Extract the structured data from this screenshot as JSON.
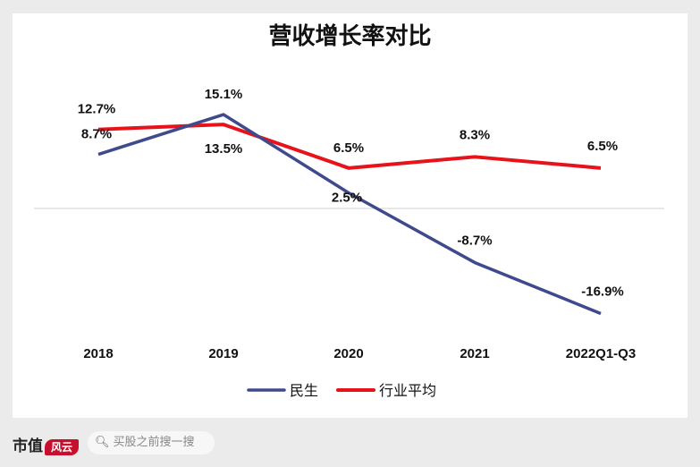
{
  "chart_data": {
    "type": "line",
    "title": "营收增长率对比",
    "categories": [
      "2018",
      "2019",
      "2020",
      "2021",
      "2022Q1-Q3"
    ],
    "series": [
      {
        "name": "民生",
        "color": "#3f4a8c",
        "values": [
          8.7,
          15.1,
          2.5,
          -8.7,
          -16.9
        ],
        "labels": [
          "8.7%",
          "15.1%",
          "2.5%",
          "-8.7%",
          "-16.9%"
        ]
      },
      {
        "name": "行业平均",
        "color": "#e8121a",
        "values": [
          12.7,
          13.5,
          6.5,
          8.3,
          6.5
        ],
        "labels": [
          "12.7%",
          "13.5%",
          "6.5%",
          "8.3%",
          "6.5%"
        ]
      }
    ],
    "ylim": [
      -20,
      20
    ],
    "legend_position": "bottom-center",
    "grid": false
  },
  "footer": {
    "brand_text": "市值",
    "brand_logo": "风云",
    "search_placeholder": "买股之前搜一搜",
    "search_icon": "search-icon"
  }
}
